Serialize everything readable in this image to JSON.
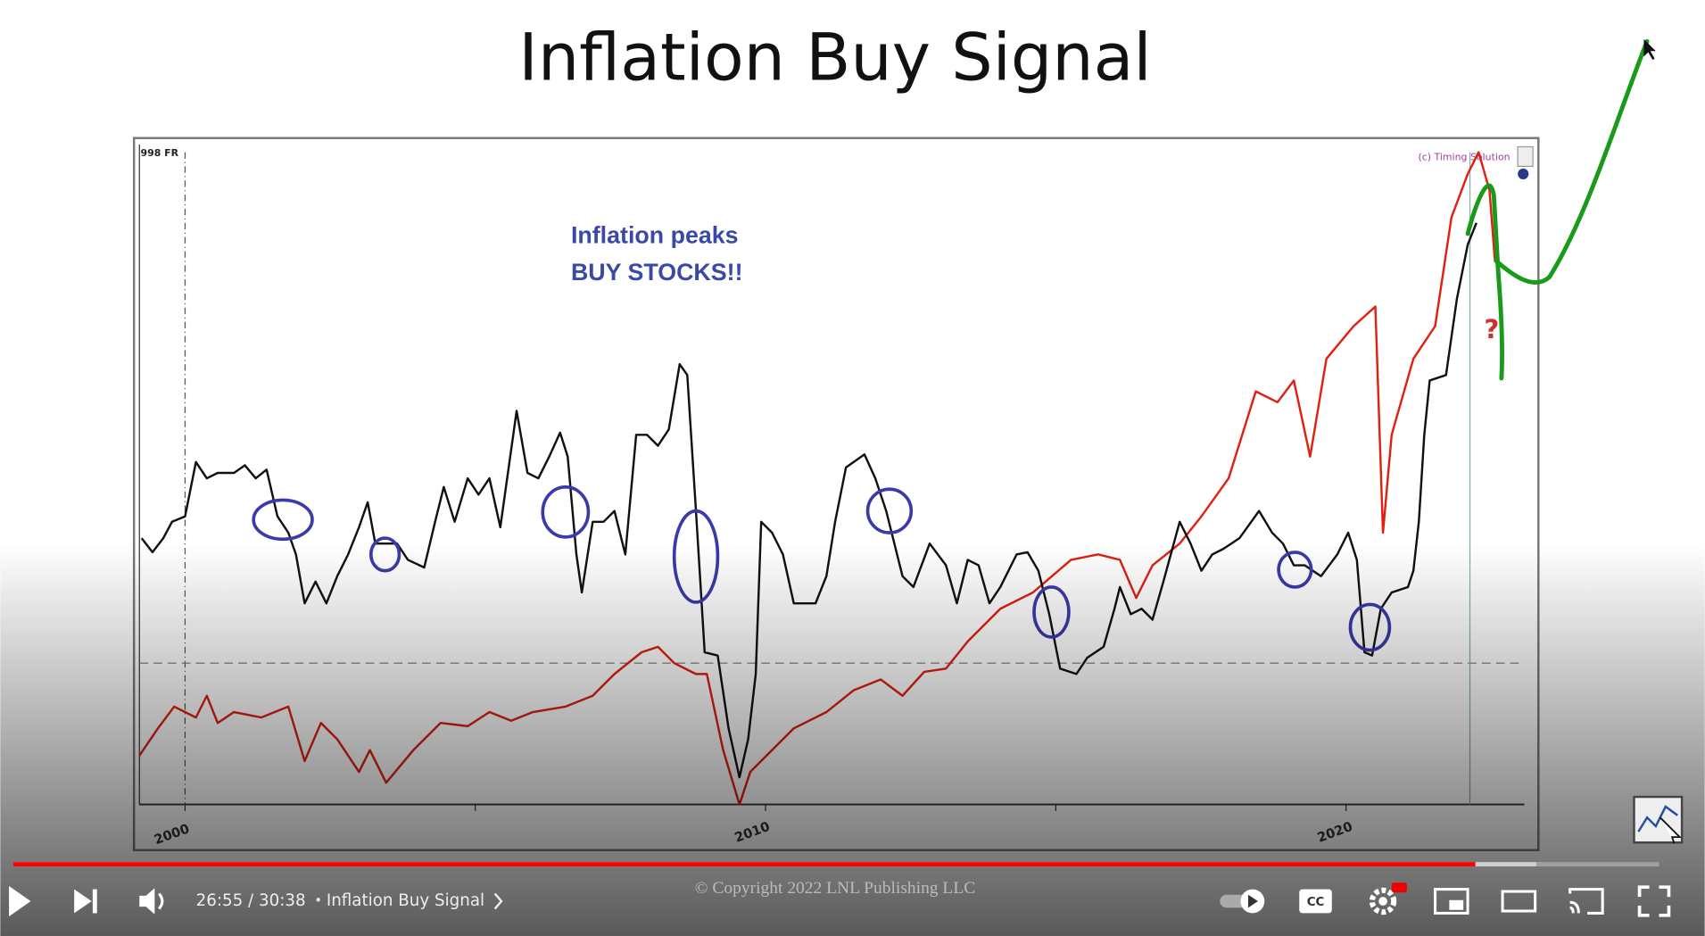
{
  "slide": {
    "title": "Inflation Buy Signal",
    "chart": {
      "corner_label": "998 FR",
      "credit": "(c) Timing Solution",
      "annotation": [
        "Inflation peaks",
        "BUY STOCKS!!"
      ],
      "question": "?",
      "x_labels": [
        "2000",
        "2010",
        "2020"
      ]
    },
    "copyright": "© Copyright 2022 LNL Publishing LLC"
  },
  "player": {
    "time": "26:55 / 30:38",
    "separator": "•",
    "chapter": "Inflation Buy Signal"
  }
}
